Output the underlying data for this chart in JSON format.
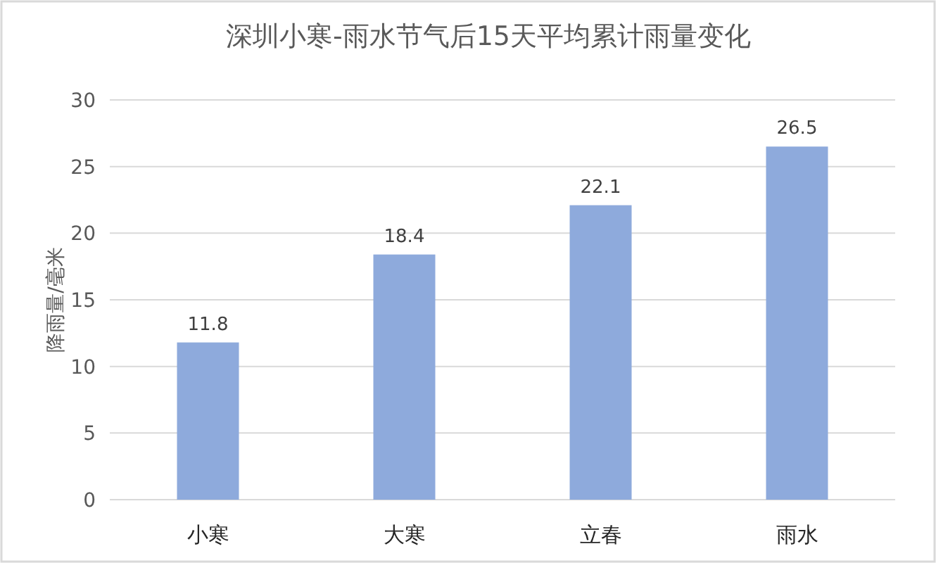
{
  "chart_data": {
    "type": "bar",
    "title": "深圳小寒-雨水节气后15天平均累计雨量变化",
    "ylabel": "降雨量/毫米",
    "categories": [
      "小寒",
      "大寒",
      "立春",
      "雨水"
    ],
    "values": [
      11.8,
      18.4,
      22.1,
      26.5
    ],
    "color": "#8eaadc",
    "ylim": [
      0,
      30
    ],
    "yticks": [
      0,
      5,
      10,
      15,
      20,
      25,
      30
    ],
    "grid": "y",
    "data_labels": true
  }
}
